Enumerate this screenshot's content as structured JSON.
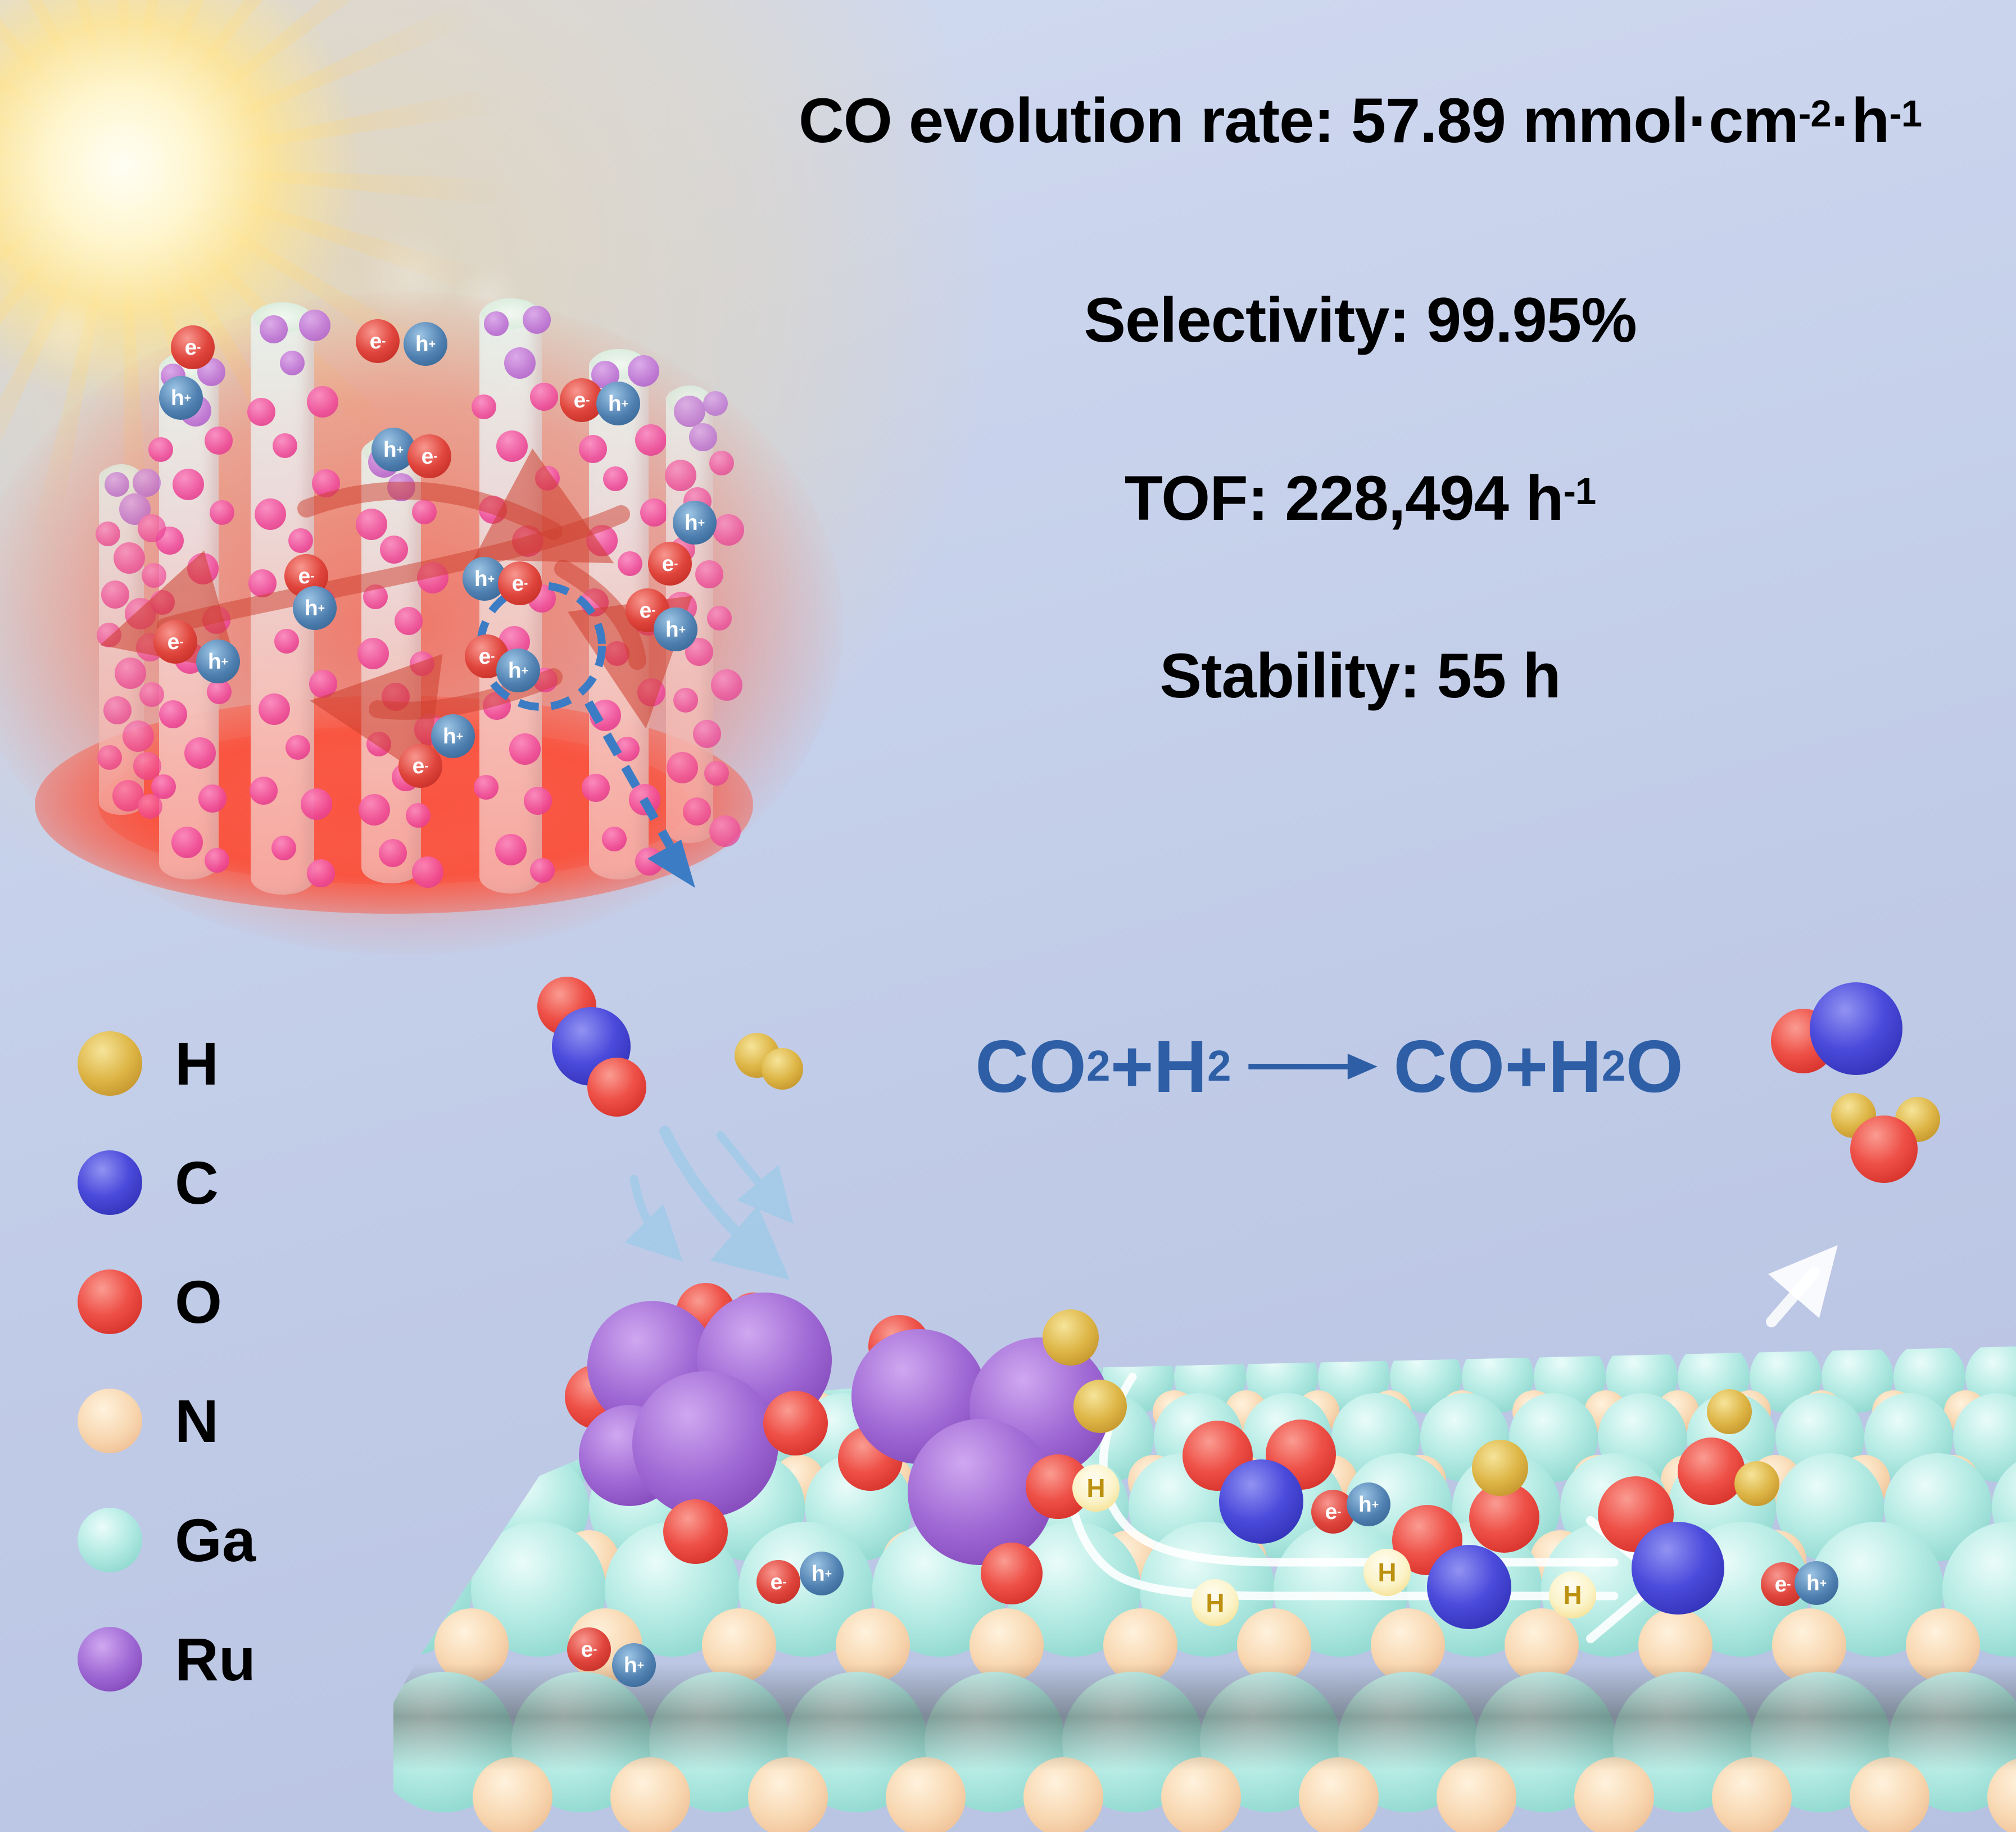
{
  "stats": {
    "line1": {
      "pre": "CO evolution rate: 57.89 mmol·cm",
      "sup1": "-2",
      "mid": "·h",
      "sup2": "-1"
    },
    "line2": "Selectivity: 99.95%",
    "line3": {
      "pre": "TOF: 228,494 h",
      "sup": "-1"
    },
    "line4": "Stability: 55 h"
  },
  "equation": {
    "r1": "CO",
    "r1sub": "2",
    "plus1": "+",
    "r2": "H",
    "r2sub": "2",
    "p1": "CO",
    "plus2": "+",
    "p2": "H",
    "p2sub": "2",
    "p3": "O"
  },
  "legend": {
    "items": [
      {
        "symbol": "H",
        "color": "#ddb545"
      },
      {
        "symbol": "C",
        "color": "#4b4bdc"
      },
      {
        "symbol": "O",
        "color": "#ee5047"
      },
      {
        "symbol": "N",
        "color": "#f8d8b2"
      },
      {
        "symbol": "Ga",
        "color": "#b5ebe4"
      },
      {
        "symbol": "Ru",
        "color": "#9f68d4"
      }
    ]
  },
  "labels": {
    "electron_base": "e",
    "electron_sup": "-",
    "hole_base": "h",
    "hole_sup": "+",
    "hydrogen": "H"
  },
  "colors": {
    "background": "#c3cde8",
    "stats_text": "#000000",
    "equation_text": "#2e5fa6",
    "zoom_annotation_blue": "#3b7cc4",
    "nanowire_glow_red": "#fa5a46",
    "nanoparticle_pink": "#ef4a9b",
    "inflow_arrow_blue": "#a3cbe9",
    "spillover_arrow_white": "#ffffff"
  }
}
